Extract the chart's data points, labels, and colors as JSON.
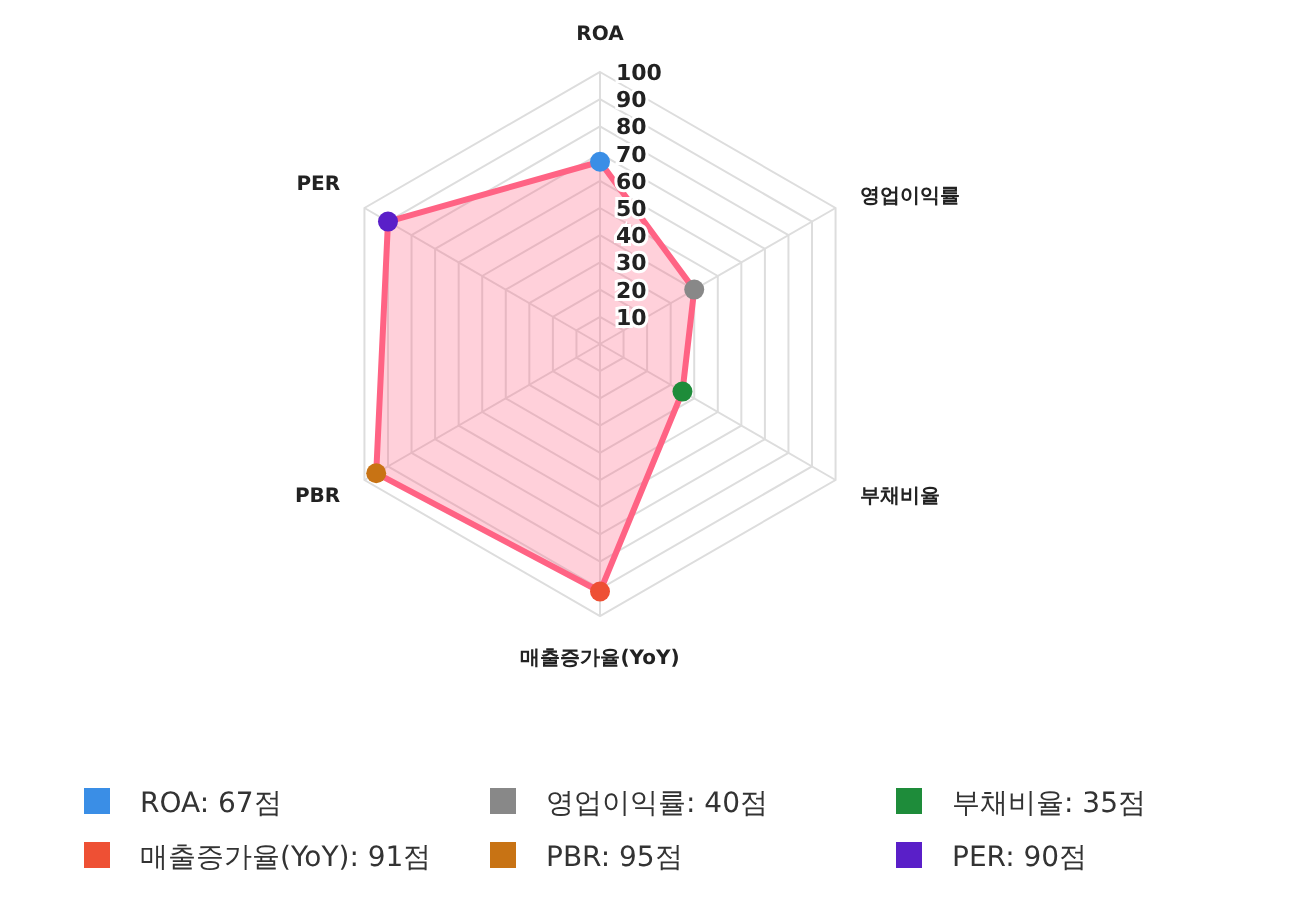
{
  "chart_data": {
    "type": "radar",
    "categories": [
      "ROA",
      "영업이익률",
      "부채비율",
      "매출증가율(YoY)",
      "PBR",
      "PER"
    ],
    "series": [
      {
        "color": "#ff6384",
        "values": [
          67,
          40,
          35,
          91,
          95,
          90
        ],
        "colors": [
          "#3a8ee6",
          "#888888",
          "#1e8c3a",
          "#ee5034",
          "#c87314",
          "#5a1fc8"
        ]
      }
    ],
    "ylim": [
      0,
      100
    ],
    "yticks": [
      10,
      20,
      30,
      40,
      50,
      60,
      70,
      80,
      90,
      100
    ],
    "grid": true,
    "marker": "circle",
    "annotations": [
      "ROA: 67점",
      "영업이익률: 40점",
      "부채비율: 35점",
      "매출증가율(YoY): 91점",
      "PBR: 95점",
      "PER: 90점"
    ]
  }
}
